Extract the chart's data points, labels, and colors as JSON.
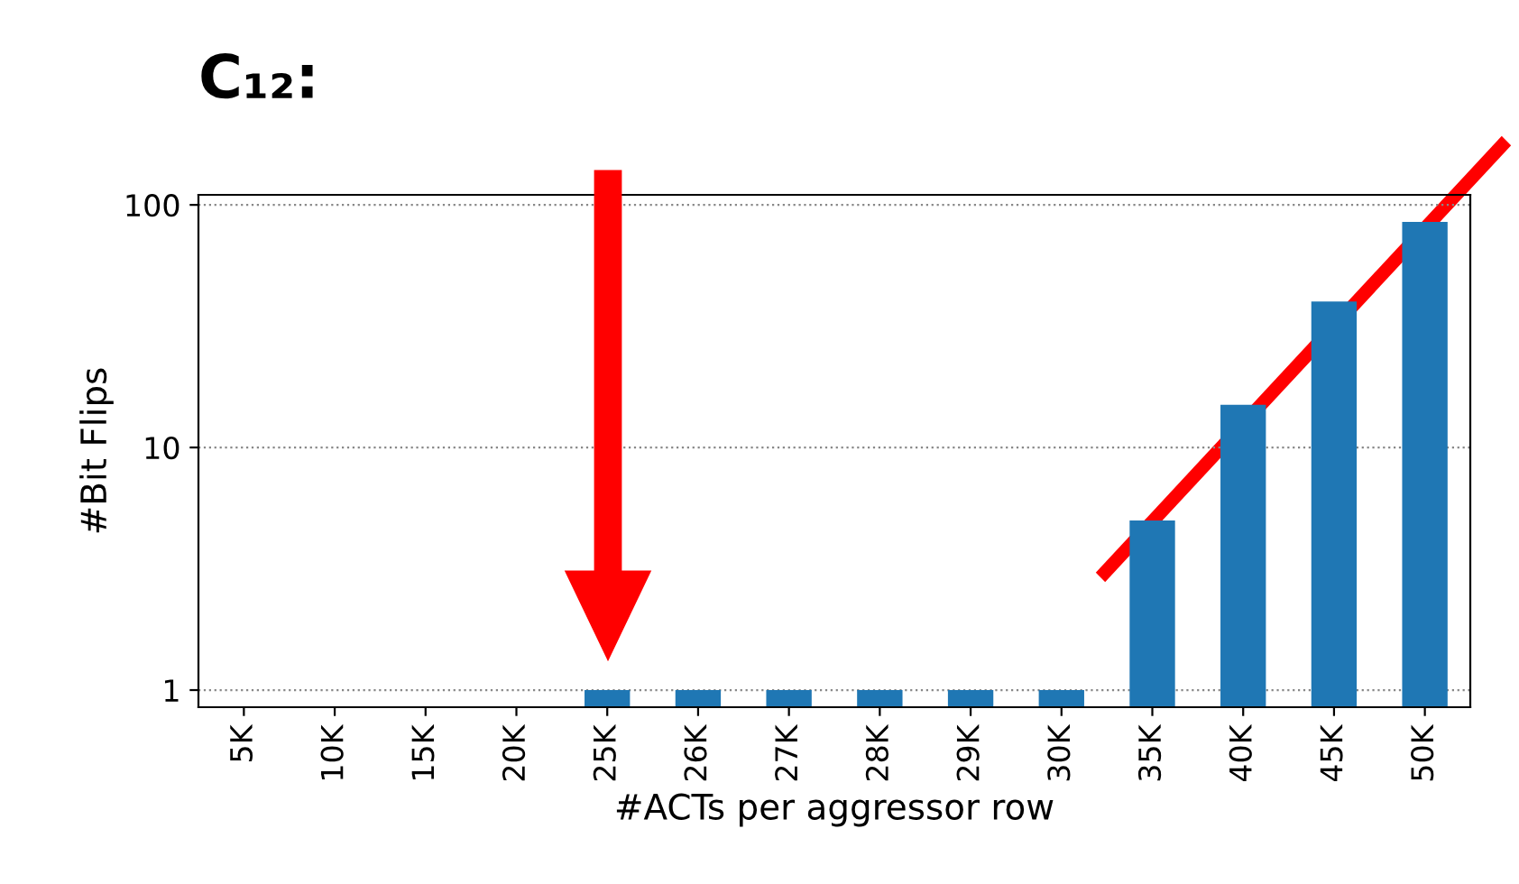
{
  "chart_data": {
    "type": "bar",
    "title": "C₁₂:",
    "xlabel": "#ACTs per aggressor row",
    "ylabel": "#Bit Flips",
    "categories": [
      "5K",
      "10K",
      "15K",
      "20K",
      "25K",
      "26K",
      "27K",
      "28K",
      "29K",
      "30K",
      "35K",
      "40K",
      "45K",
      "50K"
    ],
    "values": [
      null,
      null,
      null,
      null,
      1,
      1,
      1,
      1,
      1,
      1,
      5,
      15,
      40,
      85
    ],
    "color": "#1f77b4",
    "log": true,
    "ylim": [
      0.85,
      110
    ],
    "yticks": [
      1,
      10,
      100
    ],
    "grid": "y"
  }
}
